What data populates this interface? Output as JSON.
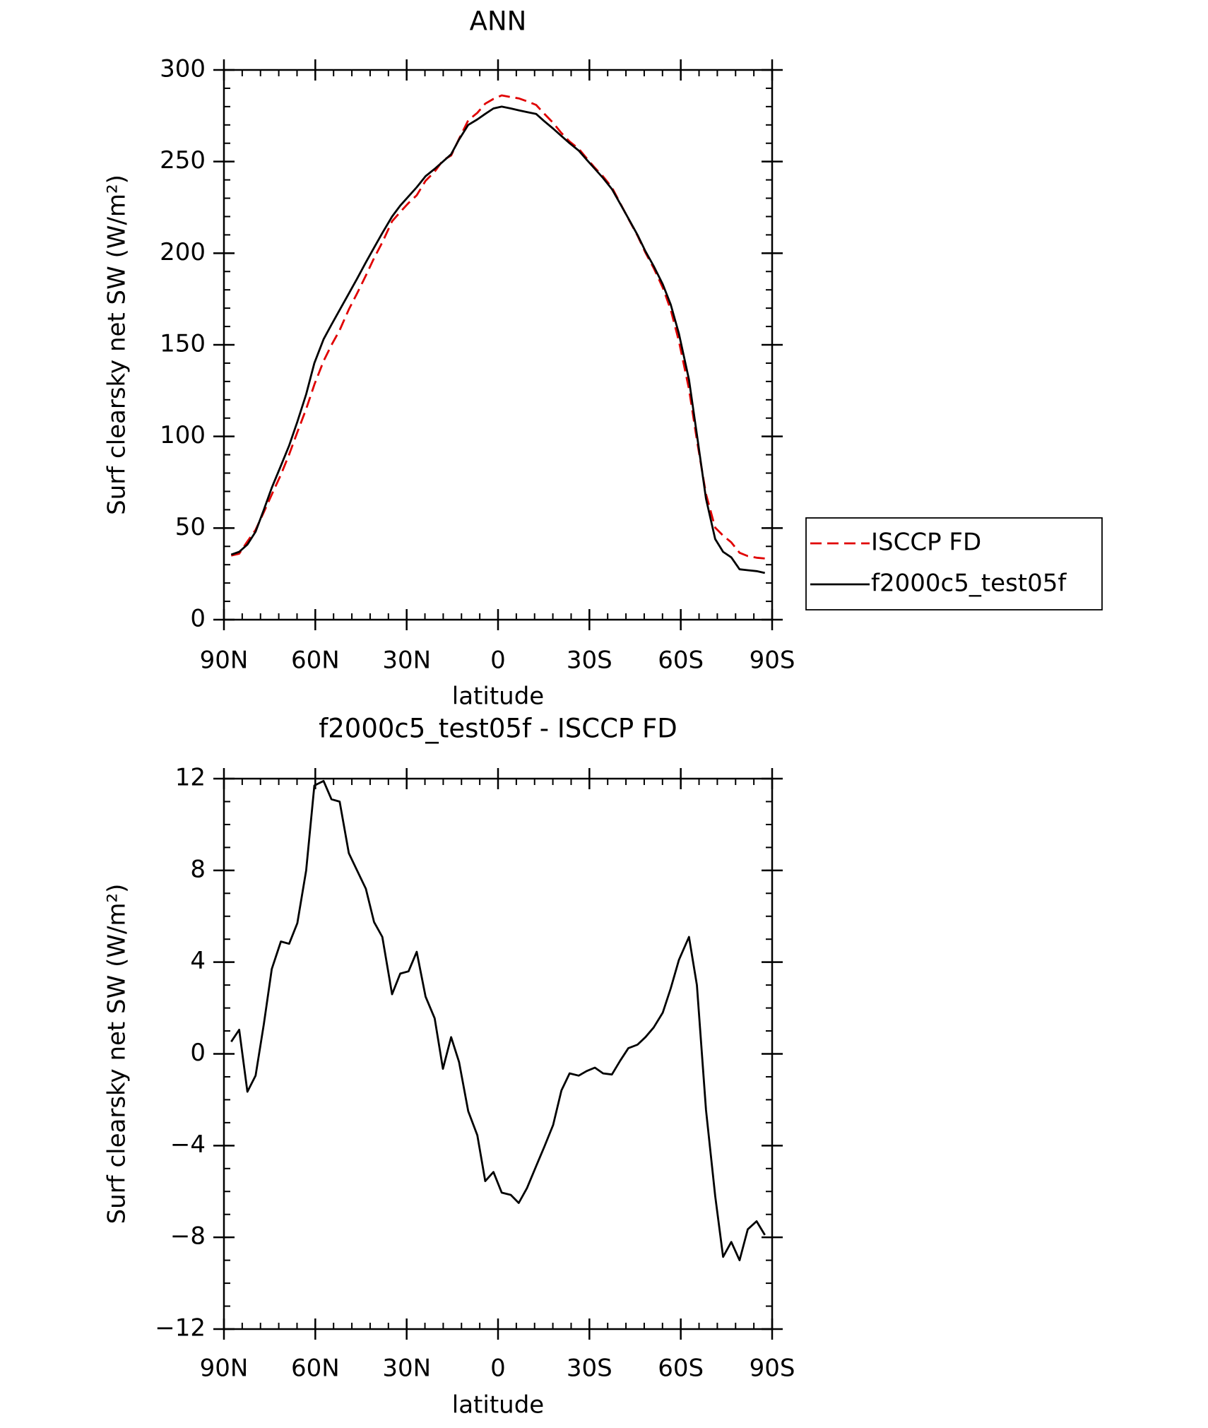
{
  "chart_data": [
    {
      "type": "line",
      "title": "ANN",
      "xlabel": "latitude",
      "ylabel": "Surf clearsky net SW (W/m²)",
      "x": [
        87.6,
        85.0,
        82.3,
        79.6,
        76.9,
        74.3,
        71.3,
        68.6,
        65.9,
        63.0,
        60.3,
        57.3,
        54.7,
        52.0,
        49.0,
        46.3,
        43.4,
        40.7,
        38.0,
        34.8,
        32.1,
        29.4,
        26.7,
        23.8,
        20.8,
        18.1,
        15.4,
        12.8,
        9.8,
        6.8,
        4.2,
        1.5,
        -1.2,
        -4.2,
        -6.8,
        -9.5,
        -12.5,
        -15.2,
        -18.1,
        -20.8,
        -23.5,
        -26.5,
        -29.1,
        -31.8,
        -34.5,
        -37.4,
        -40.1,
        -42.8,
        -45.8,
        -48.4,
        -51.1,
        -54.1,
        -56.7,
        -59.4,
        -62.7,
        -65.3,
        -68.3,
        -71.3,
        -73.9,
        -76.6,
        -79.3,
        -82.0,
        -84.9,
        -87.6
      ],
      "series": [
        {
          "name": "ISCCP FD",
          "color": "#e00000",
          "line_style": "dashed",
          "values": [
            35.0,
            36.0,
            42.7,
            49.0,
            58.7,
            68.3,
            79.1,
            90.2,
            102.3,
            115.0,
            128.3,
            141.1,
            149.9,
            158.0,
            169.3,
            178.0,
            187.8,
            197.3,
            205.9,
            217.4,
            222.5,
            227.4,
            231.6,
            239.5,
            244.5,
            250.7,
            253.3,
            262.4,
            272.5,
            276.6,
            281.6,
            284.2,
            286.1,
            285.2,
            284.5,
            282.9,
            280.9,
            276.1,
            271.1,
            265.6,
            260.9,
            257.0,
            251.8,
            246.6,
            241.9,
            235.9,
            227.3,
            218.8,
            209.6,
            200.3,
            191.9,
            181.2,
            169.2,
            151.9,
            125.9,
            98.0,
            68.5,
            50.2,
            45.9,
            42.2,
            36.5,
            34.7,
            33.8,
            33.4
          ]
        },
        {
          "name": "f2000c5_test05f",
          "color": "#000000",
          "line_style": "solid",
          "values": [
            35.5,
            37,
            41,
            48,
            60,
            72,
            84,
            95,
            108,
            123,
            140,
            153,
            161,
            169,
            178,
            186,
            195,
            203,
            211,
            220,
            226,
            231,
            236,
            242,
            246,
            250,
            254,
            262,
            270,
            273,
            276,
            279,
            280,
            279,
            278,
            277,
            276,
            272,
            268,
            264,
            260,
            256,
            251,
            246,
            241,
            235,
            227,
            219,
            210,
            201,
            193,
            183,
            172,
            156,
            131,
            101,
            66,
            44,
            37,
            34,
            27.5,
            27,
            26.5,
            25.5
          ]
        }
      ],
      "xlim": [
        90,
        -90
      ],
      "xticks": [
        {
          "value": 90,
          "label": "90N"
        },
        {
          "value": 60,
          "label": "60N"
        },
        {
          "value": 30,
          "label": "30N"
        },
        0,
        {
          "value": -30,
          "label": "30S"
        },
        {
          "value": -60,
          "label": "60S"
        },
        {
          "value": -90,
          "label": "90S"
        }
      ],
      "ylim": [
        0,
        300
      ],
      "yticks": [
        0,
        50,
        100,
        150,
        200,
        250,
        300
      ],
      "legend": true
    },
    {
      "type": "line",
      "title": "f2000c5_test05f - ISCCP FD",
      "xlabel": "latitude",
      "ylabel": "Surf clearsky net SW (W/m²)",
      "x": [
        87.6,
        85.0,
        82.3,
        79.6,
        76.9,
        74.3,
        71.3,
        68.6,
        65.9,
        63.0,
        60.3,
        57.3,
        54.7,
        52.0,
        49.0,
        46.3,
        43.4,
        40.7,
        38.0,
        34.8,
        32.1,
        29.4,
        26.7,
        23.8,
        20.8,
        18.1,
        15.4,
        12.8,
        9.8,
        6.8,
        4.2,
        1.5,
        -1.2,
        -4.2,
        -6.8,
        -9.5,
        -12.5,
        -15.2,
        -18.1,
        -20.8,
        -23.5,
        -26.5,
        -29.1,
        -31.8,
        -34.5,
        -37.4,
        -40.1,
        -42.8,
        -45.8,
        -48.4,
        -51.1,
        -54.1,
        -56.7,
        -59.4,
        -62.7,
        -65.3,
        -68.3,
        -71.3,
        -73.9,
        -76.6,
        -79.3,
        -82.0,
        -84.9,
        -87.6
      ],
      "values": [
        0.53,
        1.05,
        -1.65,
        -0.95,
        1.3,
        3.7,
        4.9,
        4.8,
        5.7,
        8.0,
        11.7,
        11.9,
        11.1,
        11.0,
        8.75,
        8.0,
        7.2,
        5.75,
        5.1,
        2.6,
        3.5,
        3.6,
        4.45,
        2.5,
        1.55,
        -0.65,
        0.73,
        -0.35,
        -2.5,
        -3.55,
        -5.55,
        -5.15,
        -6.05,
        -6.15,
        -6.5,
        -5.85,
        -4.9,
        -4.05,
        -3.1,
        -1.6,
        -0.85,
        -0.95,
        -0.75,
        -0.6,
        -0.85,
        -0.9,
        -0.3,
        0.25,
        0.4,
        0.73,
        1.15,
        1.8,
        2.85,
        4.1,
        5.1,
        3.0,
        -2.45,
        -6.2,
        -8.85,
        -8.2,
        -9.0,
        -7.65,
        -7.3,
        -7.9
      ],
      "color": "#000000",
      "xlim": [
        90,
        -90
      ],
      "xticks": [
        {
          "value": 90,
          "label": "90N"
        },
        {
          "value": 60,
          "label": "60N"
        },
        {
          "value": 30,
          "label": "30N"
        },
        0,
        {
          "value": -30,
          "label": "30S"
        },
        {
          "value": -60,
          "label": "60S"
        },
        {
          "value": -90,
          "label": "90S"
        }
      ],
      "ylim": [
        -12,
        12
      ],
      "yticks": [
        {
          "value": -12,
          "label": "−12"
        },
        {
          "value": -8,
          "label": "−8"
        },
        {
          "value": -4,
          "label": "−4"
        },
        0,
        4,
        8,
        12
      ]
    }
  ]
}
